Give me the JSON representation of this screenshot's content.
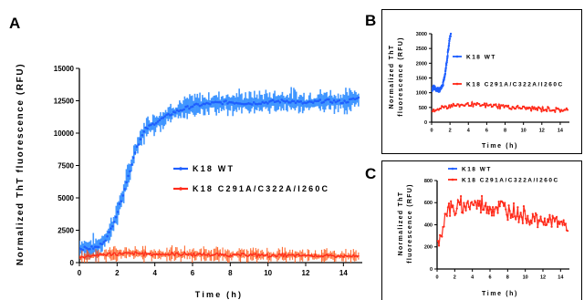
{
  "panels": [
    {
      "letter": "A",
      "ylabel": "Normalized ThT fluorescence (RFU)",
      "xlabel": "Time (h)",
      "legend": [
        "K18 WT",
        "K18 C291A/C322A/I260C"
      ]
    },
    {
      "letter": "B",
      "ylabel_line1": "Normalized ThT",
      "ylabel_line2": "fluorescence (RFU)",
      "xlabel": "Time (h)",
      "legend": [
        "K18 WT",
        "K18 C291A/C322A/I260C"
      ]
    },
    {
      "letter": "C",
      "ylabel_line1": "Normalized ThT",
      "ylabel_line2": "fluorescence (RFU)",
      "xlabel": "Time (h)",
      "legend": [
        "K18 WT",
        "K18 C291A/C322A/I260C"
      ]
    }
  ],
  "colors": {
    "wt": "#1f5fff",
    "mutant": "#ff2a1a",
    "wt_band": "#2e8cff",
    "mutant_band": "#ff5a1a"
  },
  "chart_data": [
    {
      "type": "line",
      "title": "",
      "xlabel": "Time (h)",
      "ylabel": "Normalized ThT fluorescence (RFU)",
      "xlim": [
        0,
        15
      ],
      "ylim": [
        0,
        15000
      ],
      "xticks": [
        0,
        2,
        4,
        6,
        8,
        10,
        12,
        14
      ],
      "yticks": [
        0,
        2500,
        5000,
        7500,
        10000,
        12500,
        15000
      ],
      "grid": false,
      "legend_position": "center-right",
      "series": [
        {
          "name": "K18 WT",
          "x": [
            0,
            0.5,
            1,
            1.5,
            2,
            2.5,
            3,
            3.5,
            4,
            4.5,
            5,
            6,
            7,
            8,
            9,
            10,
            11,
            12,
            13,
            14,
            14.8
          ],
          "y": [
            1100,
            1100,
            1200,
            2000,
            3800,
            6200,
            8800,
            10300,
            10800,
            11200,
            11600,
            12100,
            12300,
            12400,
            12300,
            12400,
            12500,
            12300,
            12500,
            12400,
            12700
          ]
        },
        {
          "name": "K18 C291A/C322A/I260C",
          "x": [
            0,
            1,
            2,
            3,
            4,
            5,
            6,
            7,
            8,
            9,
            10,
            11,
            12,
            13,
            14,
            14.8
          ],
          "y": [
            400,
            600,
            700,
            700,
            650,
            650,
            650,
            600,
            600,
            600,
            550,
            550,
            550,
            500,
            500,
            450
          ]
        }
      ]
    },
    {
      "type": "line",
      "title": "",
      "xlabel": "Time (h)",
      "ylabel": "Normalized ThT fluorescence (RFU)",
      "xlim": [
        0,
        15
      ],
      "ylim": [
        0,
        3000
      ],
      "xticks": [
        0,
        2,
        4,
        6,
        8,
        10,
        12,
        14
      ],
      "yticks": [
        0,
        500,
        1000,
        1500,
        2000,
        2500,
        3000
      ],
      "grid": false,
      "legend_position": "top-right",
      "series": [
        {
          "name": "K18 WT",
          "x": [
            0,
            0.25,
            0.5,
            0.75,
            1,
            1.25,
            1.5,
            1.75,
            2,
            2.1
          ],
          "y": [
            1100,
            1200,
            1120,
            1080,
            1150,
            1300,
            1700,
            2300,
            2900,
            3000
          ]
        },
        {
          "name": "K18 C291A/C322A/I260C",
          "x": [
            0.1,
            0.5,
            1,
            2,
            3,
            4,
            5,
            6,
            7,
            8,
            9,
            10,
            11,
            12,
            13,
            14,
            14.8
          ],
          "y": [
            350,
            400,
            500,
            560,
            580,
            600,
            580,
            560,
            560,
            540,
            500,
            480,
            460,
            440,
            430,
            420,
            400
          ]
        }
      ]
    },
    {
      "type": "line",
      "title": "",
      "xlabel": "Time (h)",
      "ylabel": "Normalized ThT fluorescence (RFU)",
      "xlim": [
        0,
        15
      ],
      "ylim": [
        0,
        800
      ],
      "xticks": [
        0,
        2,
        4,
        6,
        8,
        10,
        12,
        14
      ],
      "yticks": [
        0,
        200,
        400,
        600,
        800
      ],
      "grid": false,
      "legend_position": "top-right",
      "series": [
        {
          "name": "K18 C291A/C322A/I260C",
          "x": [
            0.1,
            0.5,
            1,
            1.5,
            2,
            3,
            4,
            5,
            6,
            7,
            8,
            9,
            10,
            11,
            12,
            13,
            14,
            14.8
          ],
          "y": [
            200,
            350,
            500,
            560,
            540,
            570,
            600,
            580,
            560,
            560,
            540,
            500,
            480,
            460,
            440,
            430,
            420,
            380
          ]
        }
      ]
    }
  ]
}
